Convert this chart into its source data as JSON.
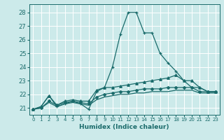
{
  "xlabel": "Humidex (Indice chaleur)",
  "xlim": [
    -0.5,
    23.5
  ],
  "ylim": [
    20.5,
    28.6
  ],
  "yticks": [
    21,
    22,
    23,
    24,
    25,
    26,
    27,
    28
  ],
  "xticks": [
    0,
    1,
    2,
    3,
    4,
    5,
    6,
    7,
    8,
    9,
    10,
    11,
    12,
    13,
    14,
    15,
    16,
    17,
    18,
    19,
    20,
    21,
    22,
    23
  ],
  "bg_color": "#cceaea",
  "line_color": "#1a6b6b",
  "grid_color": "#ffffff",
  "line1_x": [
    0,
    1,
    2,
    3,
    4,
    5,
    6,
    7,
    8,
    9,
    10,
    11,
    12,
    13,
    14,
    15,
    16,
    17,
    18,
    19,
    20,
    21,
    22,
    23
  ],
  "line1_y": [
    20.9,
    21.1,
    21.9,
    21.1,
    21.3,
    21.5,
    21.3,
    20.9,
    22.2,
    22.5,
    24.0,
    26.4,
    28.0,
    28.0,
    26.5,
    26.5,
    25.0,
    24.3,
    23.7,
    23.0,
    22.5,
    22.5,
    22.2,
    22.2
  ],
  "line2_x": [
    0,
    1,
    2,
    3,
    4,
    5,
    6,
    7,
    8,
    9,
    10,
    11,
    12,
    13,
    14,
    15,
    16,
    17,
    18,
    19,
    20,
    21,
    22,
    23
  ],
  "line2_y": [
    20.9,
    21.1,
    21.9,
    21.2,
    21.5,
    21.6,
    21.5,
    21.5,
    22.3,
    22.5,
    22.5,
    22.6,
    22.7,
    22.8,
    22.9,
    23.0,
    23.1,
    23.2,
    23.4,
    23.0,
    23.0,
    22.5,
    22.2,
    22.2
  ],
  "line3_x": [
    0,
    1,
    2,
    3,
    4,
    5,
    6,
    7,
    8,
    9,
    10,
    11,
    12,
    13,
    14,
    15,
    16,
    17,
    18,
    19,
    20,
    21,
    22,
    23
  ],
  "line3_y": [
    20.9,
    21.0,
    21.5,
    21.2,
    21.4,
    21.5,
    21.4,
    21.3,
    21.8,
    22.0,
    22.1,
    22.2,
    22.2,
    22.3,
    22.4,
    22.4,
    22.4,
    22.5,
    22.5,
    22.5,
    22.5,
    22.2,
    22.2,
    22.2
  ],
  "line4_x": [
    0,
    1,
    2,
    3,
    4,
    5,
    6,
    7,
    8,
    9,
    10,
    11,
    12,
    13,
    14,
    15,
    16,
    17,
    18,
    19,
    20,
    21,
    22,
    23
  ],
  "line4_y": [
    20.9,
    21.0,
    21.4,
    21.1,
    21.3,
    21.4,
    21.3,
    21.2,
    21.6,
    21.8,
    21.9,
    22.0,
    22.0,
    22.1,
    22.1,
    22.2,
    22.2,
    22.2,
    22.3,
    22.3,
    22.3,
    22.1,
    22.1,
    22.1
  ]
}
